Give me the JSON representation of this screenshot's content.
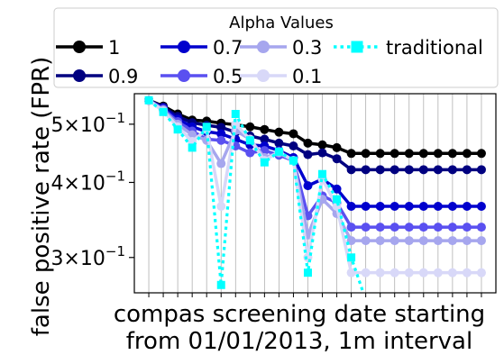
{
  "chart_data": {
    "type": "line",
    "xlabel": "compas screening date starting\nfrom 01/01/2013, 1m interval",
    "ylabel": "false positive rate (FPR)",
    "y_scale": "log",
    "ylim": [
      0.262,
      0.562
    ],
    "xlim": [
      -1,
      24
    ],
    "x": [
      0,
      1,
      2,
      3,
      4,
      5,
      6,
      7,
      8,
      9,
      10,
      11,
      12,
      13,
      14,
      15,
      16,
      17,
      18,
      19,
      20,
      21,
      22,
      23
    ],
    "y_ticks": [
      {
        "value": 0.5,
        "label": "5×10",
        "exp": "−1"
      },
      {
        "value": 0.4,
        "label": "4×10",
        "exp": "−1"
      },
      {
        "value": 0.3,
        "label": "3×10",
        "exp": "−1"
      }
    ],
    "grid": "vertical",
    "legend": {
      "title": "Alpha Values",
      "placement": "top",
      "ncol": 4
    },
    "series": [
      {
        "name": "1",
        "color": "#000000",
        "style": "solid",
        "marker": "circle",
        "values": [
          0.548,
          0.536,
          0.52,
          0.508,
          0.506,
          0.502,
          0.499,
          0.495,
          0.49,
          0.485,
          0.482,
          0.465,
          0.462,
          0.457,
          0.447,
          0.447,
          0.447,
          0.447,
          0.447,
          0.447,
          0.447,
          0.447,
          0.447,
          0.447
        ]
      },
      {
        "name": "0.9",
        "color": "#000080",
        "style": "solid",
        "marker": "circle",
        "values": [
          0.548,
          0.534,
          0.515,
          0.503,
          0.498,
          0.494,
          0.485,
          0.478,
          0.472,
          0.465,
          0.46,
          0.445,
          0.448,
          0.438,
          0.42,
          0.42,
          0.42,
          0.42,
          0.42,
          0.42,
          0.42,
          0.42,
          0.42,
          0.42
        ]
      },
      {
        "name": "0.7",
        "color": "#0000cd",
        "style": "solid",
        "marker": "circle",
        "values": [
          0.548,
          0.532,
          0.51,
          0.495,
          0.486,
          0.482,
          0.472,
          0.462,
          0.46,
          0.452,
          0.44,
          0.395,
          0.405,
          0.39,
          0.365,
          0.365,
          0.365,
          0.365,
          0.365,
          0.365,
          0.365,
          0.365,
          0.365,
          0.365
        ]
      },
      {
        "name": "0.5",
        "color": "#5a50f0",
        "style": "solid",
        "marker": "circle",
        "values": [
          0.548,
          0.53,
          0.505,
          0.487,
          0.472,
          0.47,
          0.46,
          0.448,
          0.452,
          0.444,
          0.435,
          0.352,
          0.38,
          0.37,
          0.337,
          0.337,
          0.337,
          0.337,
          0.337,
          0.337,
          0.337,
          0.337,
          0.337,
          0.337
        ]
      },
      {
        "name": "0.3",
        "color": "#a6a6ee",
        "style": "solid",
        "marker": "circle",
        "values": [
          0.548,
          0.528,
          0.5,
          0.48,
          0.47,
          0.43,
          0.488,
          0.472,
          0.44,
          0.448,
          0.435,
          0.327,
          0.375,
          0.355,
          0.32,
          0.32,
          0.32,
          0.32,
          0.32,
          0.32,
          0.32,
          0.32,
          0.32,
          0.32
        ]
      },
      {
        "name": "0.1",
        "color": "#d8d8f8",
        "style": "solid",
        "marker": "circle",
        "values": [
          0.548,
          0.526,
          0.495,
          0.468,
          0.49,
          0.365,
          0.5,
          0.472,
          0.435,
          0.45,
          0.435,
          0.3,
          0.405,
          0.365,
          0.283,
          0.283,
          0.283,
          0.283,
          0.283,
          0.283,
          0.283,
          0.283,
          0.283,
          0.283
        ]
      },
      {
        "name": "traditional",
        "color": "#00ffff",
        "style": "dotted",
        "marker": "square",
        "values": [
          0.548,
          0.524,
          0.49,
          0.457,
          0.495,
          0.27,
          0.52,
          0.47,
          0.432,
          0.45,
          0.435,
          0.283,
          0.413,
          0.375,
          0.3,
          0.255,
          0.255,
          0.255,
          0.255,
          0.255,
          0.255,
          0.255,
          0.255,
          0.255
        ]
      }
    ]
  }
}
